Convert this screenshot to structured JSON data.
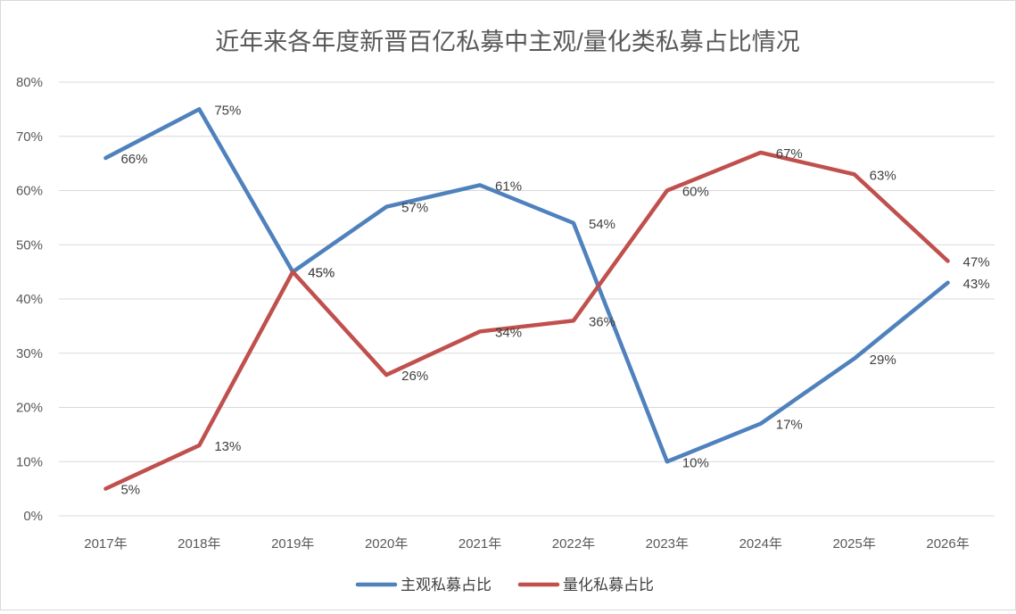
{
  "chart_data": {
    "type": "line",
    "title": "近年来各年度新晋百亿私募中主观/量化类私募占比情况",
    "categories": [
      "2017年",
      "2018年",
      "2019年",
      "2020年",
      "2021年",
      "2022年",
      "2023年",
      "2024年",
      "2025年",
      "2026年"
    ],
    "ylim": [
      0,
      80
    ],
    "yticks": [
      0,
      10,
      20,
      30,
      40,
      50,
      60,
      70,
      80
    ],
    "ytick_labels": [
      "0%",
      "10%",
      "20%",
      "30%",
      "40%",
      "50%",
      "60%",
      "70%",
      "80%"
    ],
    "grid": true,
    "legend_position": "bottom",
    "series": [
      {
        "name": "主观私募占比",
        "color": "#4f81bd",
        "values": [
          66,
          75,
          45,
          57,
          61,
          54,
          10,
          17,
          29,
          43
        ],
        "labels": [
          "66%",
          "75%",
          "45%",
          "57%",
          "61%",
          "54%",
          "10%",
          "17%",
          "29%",
          "43%"
        ]
      },
      {
        "name": "量化私募占比",
        "color": "#c0504d",
        "values": [
          5,
          13,
          45,
          26,
          34,
          36,
          60,
          67,
          63,
          47
        ],
        "labels": [
          "5%",
          "13%",
          "45%",
          "26%",
          "34%",
          "36%",
          "60%",
          "67%",
          "63%",
          "47%"
        ]
      }
    ]
  }
}
